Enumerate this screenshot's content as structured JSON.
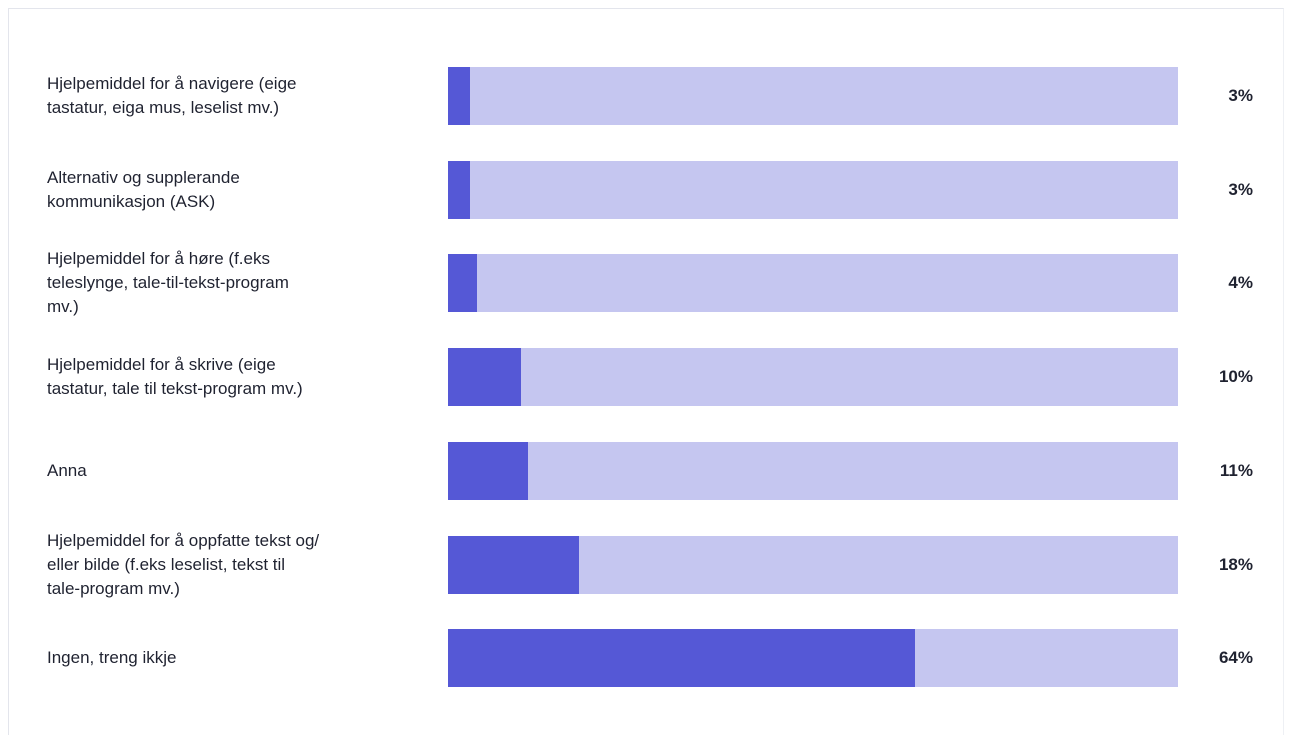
{
  "chart_data": {
    "type": "bar",
    "orientation": "horizontal",
    "categories": [
      "Hjelpemiddel for å navigere (eige\ntastatur, eiga mus, leselist mv.)",
      "Alternativ og supplerande\nkommunikasjon (ASK)",
      "Hjelpemiddel for å høre (f.eks\nteleslynge, tale-til-tekst-program\nmv.)",
      "Hjelpemiddel for å skrive (eige\ntastatur, tale til tekst-program mv.)",
      "Anna",
      "Hjelpemiddel for å oppfatte tekst og/\neller bilde (f.eks leselist, tekst til\ntale-program mv.)",
      "Ingen, treng ikkje"
    ],
    "values": [
      3,
      3,
      4,
      10,
      11,
      18,
      64
    ],
    "value_labels": [
      "3%",
      "3%",
      "4%",
      "10%",
      "11%",
      "18%",
      "64%"
    ],
    "xlim": [
      0,
      100
    ],
    "grid": false,
    "colors": {
      "fill": "#5558d6",
      "track": "#c5c6f0"
    }
  }
}
